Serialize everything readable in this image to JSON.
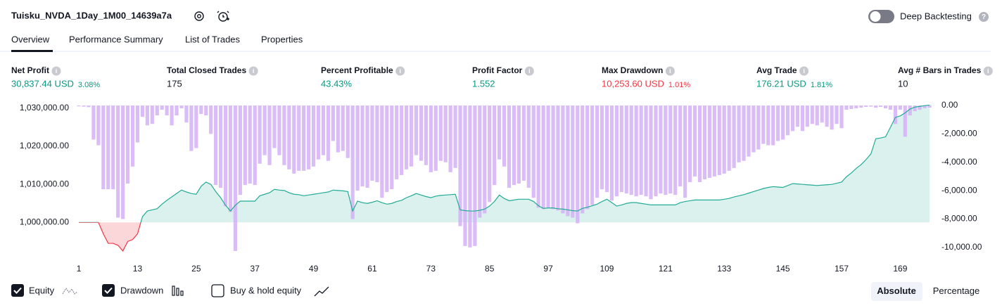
{
  "header": {
    "title": "Tuisku_NVDA_1Day_1M00_14639a7a",
    "toggle_label": "Deep Backtesting"
  },
  "tabs": [
    "Overview",
    "Performance Summary",
    "List of Trades",
    "Properties"
  ],
  "metrics": [
    {
      "label": "Net Profit",
      "value": "30,837.44 USD",
      "percent": "3.08%"
    },
    {
      "label": "Total Closed Trades",
      "value": "175"
    },
    {
      "label": "Percent Profitable",
      "value": "43.43%"
    },
    {
      "label": "Profit Factor",
      "value": "1.552"
    },
    {
      "label": "Max Drawdown",
      "value": "10,253.60 USD",
      "percent": "1.01%"
    },
    {
      "label": "Avg Trade",
      "value": "176.21 USD",
      "percent": "1.81%"
    },
    {
      "label": "Avg # Bars in Trades",
      "value": "10"
    }
  ],
  "chart_data": {
    "type": "combo",
    "x": [
      1,
      2,
      3,
      4,
      5,
      6,
      7,
      8,
      9,
      10,
      11,
      12,
      13,
      14,
      15,
      16,
      17,
      18,
      19,
      20,
      21,
      22,
      23,
      24,
      25,
      26,
      27,
      28,
      29,
      30,
      31,
      32,
      33,
      34,
      35,
      36,
      37,
      38,
      39,
      40,
      41,
      42,
      43,
      44,
      45,
      46,
      47,
      48,
      49,
      50,
      51,
      52,
      53,
      54,
      55,
      56,
      57,
      58,
      59,
      60,
      61,
      62,
      63,
      64,
      65,
      66,
      67,
      68,
      69,
      70,
      71,
      72,
      73,
      74,
      75,
      76,
      77,
      78,
      79,
      80,
      81,
      82,
      83,
      84,
      85,
      86,
      87,
      88,
      89,
      90,
      91,
      92,
      93,
      94,
      95,
      96,
      97,
      98,
      99,
      100,
      101,
      102,
      103,
      104,
      105,
      106,
      107,
      108,
      109,
      110,
      111,
      112,
      113,
      114,
      115,
      116,
      117,
      118,
      119,
      120,
      121,
      122,
      123,
      124,
      125,
      126,
      127,
      128,
      129,
      130,
      131,
      132,
      133,
      134,
      135,
      136,
      137,
      138,
      139,
      140,
      141,
      142,
      143,
      144,
      145,
      146,
      147,
      148,
      149,
      150,
      151,
      152,
      153,
      154,
      155,
      156,
      157,
      158,
      159,
      160,
      161,
      162,
      163,
      164,
      165,
      166,
      167,
      168,
      169,
      170,
      171,
      172,
      173,
      174,
      175
    ],
    "series": [
      {
        "name": "Equity",
        "type": "line",
        "axis": "y",
        "color": "#22ab94",
        "negative_color": "#f23645",
        "values": [
          1000000,
          1000000,
          1000000,
          1000000,
          1000000,
          997000,
          994500,
          994500,
          994000,
          992500,
          995000,
          995500,
          997000,
          1001500,
          1003000,
          1003300,
          1003600,
          1004800,
          1005800,
          1006700,
          1007600,
          1008500,
          1008000,
          1007600,
          1007400,
          1009500,
          1010600,
          1010000,
          1008100,
          1006500,
          1004500,
          1003000,
          1004500,
          1005600,
          1005600,
          1005600,
          1005600,
          1007000,
          1007400,
          1007800,
          1008700,
          1008500,
          1008400,
          1007800,
          1007400,
          1007300,
          1007000,
          1007200,
          1007400,
          1007600,
          1007800,
          1008000,
          1008500,
          1008400,
          1008300,
          1008100,
          1003000,
          1005600,
          1005200,
          1005000,
          1005300,
          1005700,
          1005200,
          1004800,
          1005000,
          1005500,
          1005800,
          1006500,
          1007000,
          1007600,
          1007200,
          1006800,
          1006500,
          1006900,
          1007100,
          1007200,
          1007300,
          1007400,
          1003300,
          1003100,
          1003000,
          1003000,
          1003200,
          1003500,
          1004300,
          1005500,
          1007200,
          1006300,
          1005700,
          1005900,
          1006100,
          1006100,
          1006100,
          1005500,
          1004400,
          1003700,
          1003800,
          1003800,
          1003600,
          1003500,
          1003300,
          1003100,
          1003000,
          1003700,
          1004000,
          1004400,
          1004800,
          1005500,
          1006100,
          1005200,
          1004300,
          1004600,
          1005000,
          1005200,
          1005200,
          1005000,
          1004800,
          1004600,
          1004600,
          1004600,
          1004600,
          1004600,
          1004600,
          1005200,
          1005500,
          1005700,
          1005900,
          1005900,
          1005900,
          1005900,
          1005900,
          1005900,
          1006100,
          1006300,
          1006700,
          1007000,
          1007300,
          1007700,
          1008100,
          1008500,
          1008900,
          1009200,
          1009400,
          1009300,
          1009200,
          1009700,
          1010200,
          1010100,
          1010000,
          1009900,
          1009800,
          1009700,
          1009800,
          1009900,
          1010000,
          1010300,
          1010600,
          1012000,
          1013000,
          1014200,
          1015200,
          1016500,
          1018000,
          1022000,
          1022200,
          1022500,
          1025000,
          1027600,
          1028000,
          1028800,
          1029800,
          1030300,
          1030500,
          1030700,
          1030837.44
        ]
      },
      {
        "name": "Drawdown",
        "type": "bar",
        "axis": "y2",
        "color": "#d3b1f6",
        "values": [
          -60,
          -80,
          -120,
          -2400,
          -2800,
          -5900,
          -5900,
          -5900,
          -7900,
          -8000,
          -5500,
          -4300,
          -2600,
          -800,
          -1400,
          -1300,
          -700,
          -300,
          -700,
          -1400,
          -700,
          -200,
          -1200,
          -3200,
          -3000,
          -600,
          -700,
          -2000,
          -5600,
          -5800,
          -7100,
          -7500,
          -10250,
          -6300,
          -5600,
          -5500,
          -5600,
          -4100,
          -3500,
          -4200,
          -3000,
          -3500,
          -4200,
          -4500,
          -4800,
          -4600,
          -4600,
          -4500,
          -4300,
          -3800,
          -3500,
          -3900,
          -2500,
          -3300,
          -3200,
          -3700,
          -8000,
          -6000,
          -5700,
          -5800,
          -5300,
          -5400,
          -6500,
          -6100,
          -5900,
          -5200,
          -4900,
          -4500,
          -4300,
          -3500,
          -3900,
          -4200,
          -4700,
          -4600,
          -3900,
          -4000,
          -4700,
          -4400,
          -8500,
          -9900,
          -10000,
          -9900,
          -7900,
          -7600,
          -6800,
          -5600,
          -3800,
          -4300,
          -5800,
          -5600,
          -5500,
          -5300,
          -5800,
          -6500,
          -7200,
          -7300,
          -7200,
          -7300,
          -7400,
          -7600,
          -7800,
          -7900,
          -8300,
          -7600,
          -7300,
          -7000,
          -6500,
          -5900,
          -6100,
          -6700,
          -6400,
          -6100,
          -6200,
          -6300,
          -6400,
          -6300,
          -6400,
          -6600,
          -6400,
          -6200,
          -6300,
          -6200,
          -6300,
          -5700,
          -6500,
          -5400,
          -5000,
          -5400,
          -5200,
          -5100,
          -5000,
          -4900,
          -4800,
          -4600,
          -4400,
          -4000,
          -3900,
          -3600,
          -3300,
          -3100,
          -2700,
          -2800,
          -2800,
          -2500,
          -2400,
          -2100,
          -1800,
          -1500,
          -1800,
          -1500,
          -1300,
          -1400,
          -1200,
          -1500,
          -1700,
          -1300,
          -1600,
          -300,
          -250,
          -200,
          -150,
          -100,
          -80,
          -150,
          -100,
          -200,
          -300,
          -1300,
          -300,
          -2200,
          -700,
          -400,
          -300,
          -200,
          -150
        ]
      }
    ],
    "xlim": [
      0.7,
      176
    ],
    "xticks": [
      1,
      13,
      25,
      37,
      49,
      61,
      73,
      85,
      97,
      109,
      121,
      133,
      145,
      157,
      169
    ],
    "ylim": [
      991000,
      1031100
    ],
    "yticks": [
      {
        "value": 1000000,
        "label": "1,000,000.00"
      },
      {
        "value": 1010000,
        "label": "1,010,000.00"
      },
      {
        "value": 1020000,
        "label": "1,020,000.00"
      },
      {
        "value": 1030000,
        "label": "1,030,000.00"
      }
    ],
    "y2lim": [
      -10650,
      100
    ],
    "y2ticks": [
      {
        "value": 0,
        "label": "0.00"
      },
      {
        "value": -2000,
        "label": "-2,000.00"
      },
      {
        "value": -4000,
        "label": "-4,000.00"
      },
      {
        "value": -6000,
        "label": "-6,000.00"
      },
      {
        "value": -8000,
        "label": "-8,000.00"
      },
      {
        "value": -10000,
        "label": "-10,000.00"
      }
    ]
  },
  "legend_extra": "Buy & hold equity",
  "buttons": [
    "Absolute",
    "Percentage"
  ]
}
